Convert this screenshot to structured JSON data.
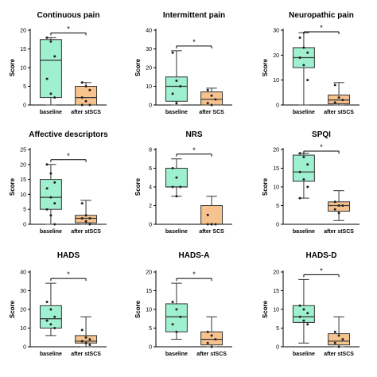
{
  "chart_data": [
    {
      "type": "box",
      "title": "Continuous pain",
      "ylabel": "Score",
      "ylim": [
        0,
        20
      ],
      "yticks": [
        0,
        5,
        10,
        15,
        20
      ],
      "categories": [
        "baseline",
        "after stSCS"
      ],
      "boxes": [
        {
          "min": 0,
          "q1": 2,
          "median": 12,
          "q3": 17.5,
          "max": 18,
          "color": "#9ff0d0",
          "points": [
            18,
            17,
            13,
            7,
            3,
            2
          ]
        },
        {
          "min": 0,
          "q1": 0,
          "median": 2,
          "q3": 5,
          "max": 6,
          "color": "#f6c28e",
          "points": [
            6,
            5,
            4,
            2,
            1,
            0,
            0
          ]
        }
      ],
      "significance": "*"
    },
    {
      "type": "box",
      "title": "Intermittent pain",
      "ylabel": "Score",
      "ylim": [
        0,
        40
      ],
      "yticks": [
        0,
        10,
        20,
        30,
        40
      ],
      "categories": [
        "baseline",
        "after SCS"
      ],
      "boxes": [
        {
          "min": 0,
          "q1": 2,
          "median": 10,
          "q3": 15,
          "max": 29,
          "color": "#9ff0d0",
          "points": [
            28,
            13,
            10,
            6,
            1
          ]
        },
        {
          "min": 0,
          "q1": 0,
          "median": 3,
          "q3": 7,
          "max": 9,
          "color": "#f6c28e",
          "points": [
            8,
            5,
            3,
            1,
            0
          ]
        }
      ],
      "significance": "*"
    },
    {
      "type": "box",
      "title": "Neuropathic pain",
      "ylabel": "Score",
      "ylim": [
        0,
        30
      ],
      "yticks": [
        0,
        10,
        20,
        30
      ],
      "categories": [
        "baseline",
        "after stSCS"
      ],
      "boxes": [
        {
          "min": 0,
          "q1": 15,
          "median": 19,
          "q3": 23,
          "max": 29,
          "color": "#9ff0d0",
          "points": [
            27,
            23,
            21,
            19,
            16,
            10
          ]
        },
        {
          "min": 0,
          "q1": 0.5,
          "median": 2,
          "q3": 4,
          "max": 9,
          "color": "#f6c28e",
          "points": [
            8,
            3,
            2,
            1
          ]
        }
      ],
      "significance": "*"
    },
    {
      "type": "box",
      "title": "Affective descriptors",
      "ylabel": "Score",
      "ylim": [
        0,
        25
      ],
      "yticks": [
        0,
        5,
        10,
        15,
        20,
        25
      ],
      "categories": [
        "baseline",
        "after stSCS"
      ],
      "boxes": [
        {
          "min": 0,
          "q1": 5,
          "median": 9,
          "q3": 15,
          "max": 20,
          "color": "#9ff0d0",
          "points": [
            20,
            17,
            14,
            12,
            9,
            7,
            5,
            3,
            0
          ]
        },
        {
          "min": 0,
          "q1": 0.5,
          "median": 2,
          "q3": 3,
          "max": 8,
          "color": "#f6c28e",
          "points": [
            7,
            3,
            2,
            2,
            1,
            0
          ]
        }
      ],
      "significance": "*"
    },
    {
      "type": "box",
      "title": "NRS",
      "ylabel": "Score",
      "ylim": [
        0,
        8
      ],
      "yticks": [
        0,
        2,
        4,
        6,
        8
      ],
      "categories": [
        "baseline",
        "after SCS"
      ],
      "boxes": [
        {
          "min": 3,
          "q1": 4,
          "median": 4,
          "q3": 6,
          "max": 7,
          "color": "#9ff0d0",
          "points": [
            6,
            5,
            4,
            4,
            3
          ]
        },
        {
          "min": 0,
          "q1": 0,
          "median": 0,
          "q3": 2,
          "max": 3,
          "color": "#f6c28e",
          "points": [
            1,
            0,
            0,
            0,
            0
          ]
        }
      ],
      "significance": "*"
    },
    {
      "type": "box",
      "title": "SPQI",
      "ylabel": "Score",
      "ylim": [
        0,
        20
      ],
      "yticks": [
        0,
        5,
        10,
        15,
        20
      ],
      "categories": [
        "baseline",
        "after stSCS"
      ],
      "boxes": [
        {
          "min": 7,
          "q1": 11.5,
          "median": 14,
          "q3": 18.5,
          "max": 19,
          "color": "#9ff0d0",
          "points": [
            19,
            18,
            16,
            14,
            12,
            10,
            7
          ]
        },
        {
          "min": 1,
          "q1": 3.5,
          "median": 5,
          "q3": 6,
          "max": 9,
          "color": "#f6c28e",
          "points": [
            6,
            5,
            5,
            4,
            3
          ]
        }
      ],
      "significance": "*"
    },
    {
      "type": "box",
      "title": "HADS",
      "ylabel": "Score",
      "ylim": [
        0,
        40
      ],
      "yticks": [
        0,
        10,
        20,
        30,
        40
      ],
      "categories": [
        "baseline",
        "after stSCS"
      ],
      "boxes": [
        {
          "min": 6,
          "q1": 10,
          "median": 15,
          "q3": 22,
          "max": 34,
          "color": "#9ff0d0",
          "points": [
            24,
            20,
            16,
            14,
            12,
            10
          ]
        },
        {
          "min": 0,
          "q1": 2,
          "median": 3,
          "q3": 6,
          "max": 16,
          "color": "#f6c28e",
          "points": [
            9,
            5,
            4,
            3,
            2,
            1
          ]
        }
      ],
      "significance": "*"
    },
    {
      "type": "box",
      "title": "HADS-A",
      "ylabel": "Score",
      "ylim": [
        0,
        20
      ],
      "yticks": [
        0,
        5,
        10,
        15,
        20
      ],
      "categories": [
        "baseline",
        "after stSCS"
      ],
      "boxes": [
        {
          "min": 2,
          "q1": 4,
          "median": 8,
          "q3": 11.5,
          "max": 17,
          "color": "#9ff0d0",
          "points": [
            12,
            10,
            8,
            6,
            4
          ]
        },
        {
          "min": 0,
          "q1": 0.5,
          "median": 2,
          "q3": 4,
          "max": 8,
          "color": "#f6c28e",
          "points": [
            4,
            3,
            2,
            1,
            0
          ]
        }
      ],
      "significance": "*"
    },
    {
      "type": "box",
      "title": "HADS-D",
      "ylabel": "Score",
      "ylim": [
        0,
        20
      ],
      "yticks": [
        0,
        5,
        10,
        15,
        20
      ],
      "categories": [
        "baseline",
        "after stSCS"
      ],
      "boxes": [
        {
          "min": 1,
          "q1": 6.5,
          "median": 8,
          "q3": 11,
          "max": 18,
          "color": "#9ff0d0",
          "points": [
            11,
            10,
            9,
            8,
            7,
            6
          ]
        },
        {
          "min": 0,
          "q1": 0.5,
          "median": 1.5,
          "q3": 3.5,
          "max": 8,
          "color": "#f6c28e",
          "points": [
            4,
            3,
            2,
            1,
            0
          ]
        }
      ],
      "significance": "*"
    }
  ]
}
